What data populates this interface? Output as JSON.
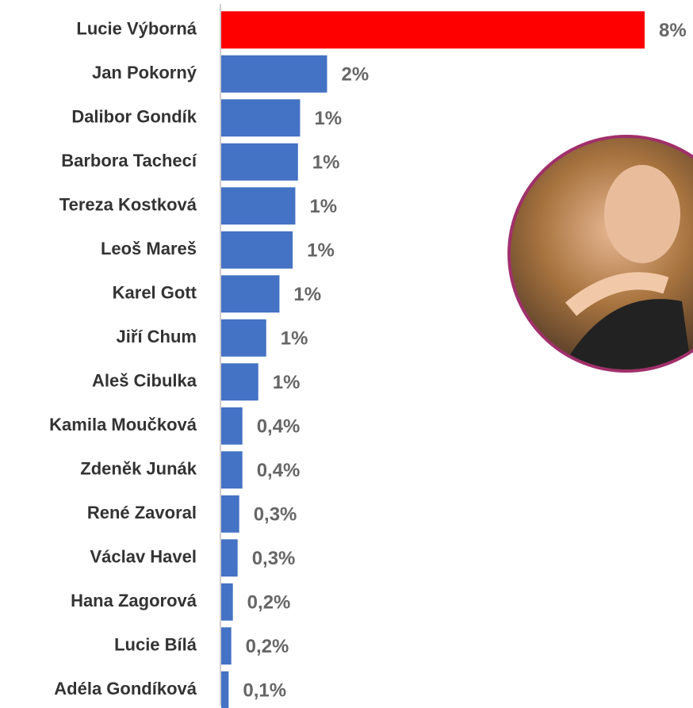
{
  "chart_data": {
    "type": "hbar",
    "categories": [
      "Lucie Výborná",
      "Jan Pokorný",
      "Dalibor Gondík",
      "Barbora Tachecí",
      "Tereza Kostková",
      "Leoš Mareš",
      "Karel Gott",
      "Jiří Chum",
      "Aleš Cibulka",
      "Kamila Moučková",
      "Zdeněk Junák",
      "René Zavoral",
      "Václav Havel",
      "Hana Zagorová",
      "Lucie Bílá",
      "Adéla Gondíková"
    ],
    "values": [
      8,
      2.0,
      1.49,
      1.45,
      1.4,
      1.35,
      1.1,
      0.85,
      0.7,
      0.4,
      0.4,
      0.34,
      0.31,
      0.22,
      0.19,
      0.14
    ],
    "value_labels": [
      "8%",
      "2%",
      "1%",
      "1%",
      "1%",
      "1%",
      "1%",
      "1%",
      "1%",
      "0,4%",
      "0,4%",
      "0,3%",
      "0,3%",
      "0,2%",
      "0,2%",
      "0,1%"
    ],
    "colors": [
      "#ff0000",
      "#4472c4",
      "#4472c4",
      "#4472c4",
      "#4472c4",
      "#4472c4",
      "#4472c4",
      "#4472c4",
      "#4472c4",
      "#4472c4",
      "#4472c4",
      "#4472c4",
      "#4472c4",
      "#4472c4",
      "#4472c4",
      "#4472c4"
    ]
  }
}
